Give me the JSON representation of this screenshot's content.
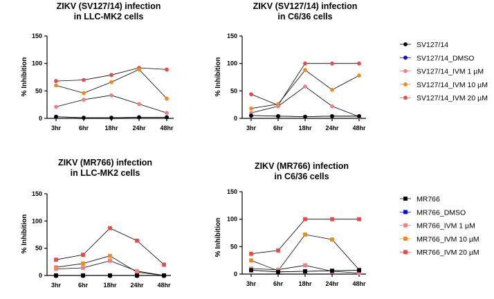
{
  "chart_data": [
    {
      "type": "line",
      "title_line1": "ZIKV (SV127/14) infection",
      "title_line2": "in LLC-MK2 cells",
      "ylabel": "% Inhibition",
      "ylim": [
        0,
        150
      ],
      "yticks": [
        "0",
        "50",
        "100",
        "150"
      ],
      "categories": [
        "3hr",
        "6hr",
        "18hr",
        "24hr",
        "48hr"
      ],
      "marker": "circle",
      "series": [
        {
          "name": "SV127/14",
          "color": "#000000",
          "values": [
            3,
            1,
            1,
            2,
            2
          ]
        },
        {
          "name": "SV127/14_DMSO",
          "color": "#0000ff",
          "values": [
            3,
            1,
            1,
            2,
            2
          ]
        },
        {
          "name": "SV127/14_IVM 1 µM",
          "color": "#f08080",
          "values": [
            21,
            34,
            42,
            26,
            10
          ]
        },
        {
          "name": "SV127/14_IVM 10 µM",
          "color": "#f08a1c",
          "values": [
            60,
            46,
            66,
            89,
            36
          ]
        },
        {
          "name": "SV127/14_IVM 20 µM",
          "color": "#ec4848",
          "values": [
            68,
            70,
            79,
            92,
            89
          ]
        }
      ]
    },
    {
      "type": "line",
      "title_line1": "ZIKV (SV127/14) infection",
      "title_line2": "in C6/36 cells",
      "ylabel": "% Inhibition",
      "ylim": [
        0,
        150
      ],
      "yticks": [
        "0",
        "50",
        "100",
        "150"
      ],
      "categories": [
        "3hr",
        "6hr",
        "18hr",
        "24hr",
        "48hr"
      ],
      "marker": "circle",
      "series": [
        {
          "name": "SV127/14",
          "color": "#000000",
          "values": [
            5,
            4,
            3,
            4,
            4
          ]
        },
        {
          "name": "SV127/14_DMSO",
          "color": "#0000ff",
          "values": [
            5,
            4,
            3,
            4,
            4
          ]
        },
        {
          "name": "SV127/14_IVM 1 µM",
          "color": "#f08080",
          "values": [
            10,
            22,
            58,
            22,
            3
          ]
        },
        {
          "name": "SV127/14_IVM 10 µM",
          "color": "#f08a1c",
          "values": [
            18,
            26,
            88,
            52,
            78
          ]
        },
        {
          "name": "SV127/14_IVM 20 µM",
          "color": "#ec4848",
          "values": [
            44,
            24,
            100,
            100,
            100
          ]
        }
      ]
    },
    {
      "type": "line",
      "title_line1": "ZIKV (MR766) infection",
      "title_line2": "in LLC-MK2 cells",
      "ylabel": "% Inhibition",
      "ylim": [
        0,
        150
      ],
      "yticks": [
        "0",
        "50",
        "100",
        "150"
      ],
      "categories": [
        "3hr",
        "6hr",
        "18hr",
        "24hr",
        "48hr"
      ],
      "marker": "square",
      "series": [
        {
          "name": "MR766",
          "color": "#000000",
          "values": [
            0,
            0,
            0,
            0,
            0
          ]
        },
        {
          "name": "MR766_DMSO",
          "color": "#0000ff",
          "values": [
            0,
            0,
            0,
            0,
            0
          ]
        },
        {
          "name": "MR766_IVM 1 µM",
          "color": "#f08080",
          "values": [
            12,
            14,
            27,
            8,
            0
          ]
        },
        {
          "name": "MR766_IVM 10 µM",
          "color": "#f08a1c",
          "values": [
            15,
            22,
            36,
            6,
            0
          ]
        },
        {
          "name": "MR766_IVM 20 µM",
          "color": "#ec4848",
          "values": [
            29,
            38,
            87,
            64,
            20
          ]
        }
      ]
    },
    {
      "type": "line",
      "title_line1": "ZIKV (MR766) infection",
      "title_line2": "in C6/36 cells",
      "ylabel": "% Inhibition",
      "ylim": [
        0,
        150
      ],
      "yticks": [
        "0",
        "50",
        "100",
        "150"
      ],
      "categories": [
        "3hr",
        "6hr",
        "18hr",
        "24hr",
        "48hr"
      ],
      "marker": "square",
      "series": [
        {
          "name": "MR766",
          "color": "#000000",
          "values": [
            7,
            4,
            5,
            6,
            7
          ]
        },
        {
          "name": "MR766_DMSO",
          "color": "#0000ff",
          "values": [
            7,
            4,
            5,
            6,
            7
          ]
        },
        {
          "name": "MR766_IVM 1 µM",
          "color": "#f08080",
          "values": [
            10,
            8,
            16,
            5,
            2
          ]
        },
        {
          "name": "MR766_IVM 10 µM",
          "color": "#f08a1c",
          "values": [
            25,
            6,
            72,
            63,
            8
          ]
        },
        {
          "name": "MR766_IVM 20 µM",
          "color": "#ec4848",
          "values": [
            37,
            43,
            100,
            100,
            100
          ]
        }
      ]
    }
  ],
  "legends": [
    {
      "marker": "circle",
      "items": [
        {
          "label": "SV127/14",
          "color": "#000000"
        },
        {
          "label": "SV127/14_DMSO",
          "color": "#0000ff"
        },
        {
          "label": "SV127/14_IVM 1 µM",
          "color": "#f08080"
        },
        {
          "label": "SV127/14_IVM 10 µM",
          "color": "#f08a1c"
        },
        {
          "label": "SV127/14_IVM 20 µM",
          "color": "#ec4848"
        }
      ]
    },
    {
      "marker": "square",
      "items": [
        {
          "label": "MR766",
          "color": "#000000"
        },
        {
          "label": "MR766_DMSO",
          "color": "#0000ff"
        },
        {
          "label": "MR766_IVM 1 µM",
          "color": "#f08080"
        },
        {
          "label": "MR766_IVM 10 µM",
          "color": "#f08a1c"
        },
        {
          "label": "MR766_IVM 20 µM",
          "color": "#ec4848"
        }
      ]
    }
  ]
}
